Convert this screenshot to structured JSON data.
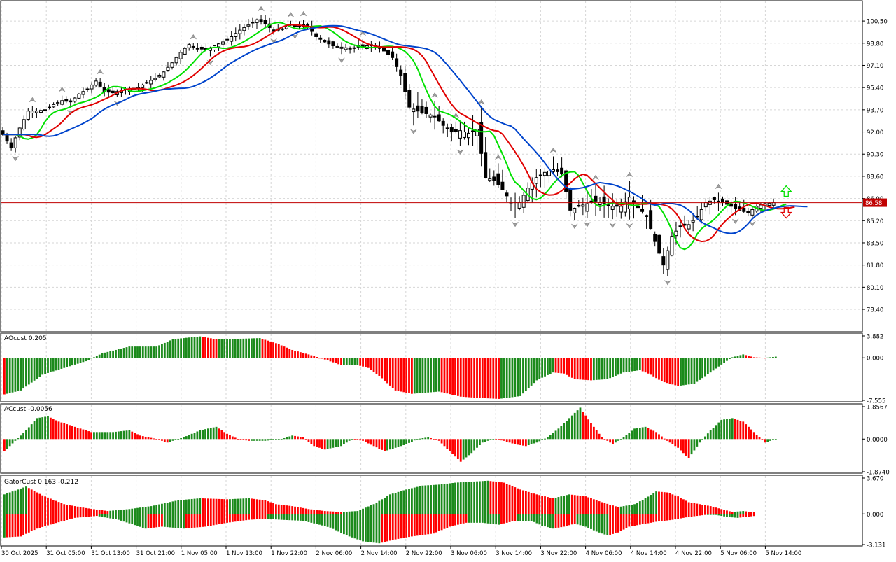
{
  "colors": {
    "bull": "#1b8a1b",
    "bear": "#ff0000",
    "ma_green": "#00e000",
    "ma_red": "#e00000",
    "ma_blue": "#0044cc",
    "price_line": "#c00000",
    "price_tag_bg": "#c00000",
    "grid": "#d6d6d6",
    "frame": "#000000"
  },
  "chart_data": [
    {
      "type": "line",
      "panel": "price",
      "subtype": "candlestick",
      "current_price_label": "86.58",
      "current_price": 86.58,
      "ylim": [
        76.9,
        101.9
      ],
      "y_ticks": [
        "100.50",
        "98.80",
        "97.10",
        "95.40",
        "93.70",
        "92.00",
        "90.30",
        "88.60",
        "86.90",
        "85.20",
        "83.50",
        "81.80",
        "80.10",
        "78.40"
      ],
      "x_ticks": [
        "30 Oct 2025",
        "31 Oct 05:00",
        "31 Oct 13:00",
        "31 Oct 21:00",
        "1 Nov 05:00",
        "1 Nov 13:00",
        "1 Nov 22:00",
        "2 Nov 06:00",
        "2 Nov 14:00",
        "2 Nov 22:00",
        "3 Nov 06:00",
        "3 Nov 14:00",
        "3 Nov 22:00",
        "4 Nov 06:00",
        "4 Nov 14:00",
        "4 Nov 22:00",
        "5 Nov 06:00",
        "5 Nov 14:00"
      ],
      "close_anchors": [
        [
          0,
          91.8
        ],
        [
          2,
          90.8
        ],
        [
          4,
          92.3
        ],
        [
          6,
          93.6
        ],
        [
          8,
          93.6
        ],
        [
          10,
          93.7
        ],
        [
          12,
          94.1
        ],
        [
          14,
          94.4
        ],
        [
          16,
          94.3
        ],
        [
          18,
          94.9
        ],
        [
          20,
          95.3
        ],
        [
          22,
          95.9
        ],
        [
          24,
          95.1
        ],
        [
          26,
          95.0
        ],
        [
          28,
          95.2
        ],
        [
          30,
          95.3
        ],
        [
          32,
          95.4
        ],
        [
          34,
          95.8
        ],
        [
          36,
          96.1
        ],
        [
          38,
          96.6
        ],
        [
          40,
          97.3
        ],
        [
          42,
          98.1
        ],
        [
          44,
          98.7
        ],
        [
          46,
          98.4
        ],
        [
          48,
          98.3
        ],
        [
          50,
          98.6
        ],
        [
          52,
          98.9
        ],
        [
          54,
          99.3
        ],
        [
          56,
          99.8
        ],
        [
          58,
          100.2
        ],
        [
          60,
          100.6
        ],
        [
          62,
          100.3
        ],
        [
          64,
          99.7
        ],
        [
          66,
          99.9
        ],
        [
          68,
          100.2
        ],
        [
          70,
          100.1
        ],
        [
          72,
          100.1
        ],
        [
          74,
          99.3
        ],
        [
          76,
          98.9
        ],
        [
          78,
          98.6
        ],
        [
          80,
          98.5
        ],
        [
          82,
          98.4
        ],
        [
          84,
          98.5
        ],
        [
          86,
          98.6
        ],
        [
          88,
          98.6
        ],
        [
          90,
          98.2
        ],
        [
          92,
          97.7
        ],
        [
          94,
          96.3
        ],
        [
          96,
          93.9
        ],
        [
          98,
          93.6
        ],
        [
          100,
          93.4
        ],
        [
          102,
          93.2
        ],
        [
          104,
          92.5
        ],
        [
          106,
          92.0
        ],
        [
          108,
          92.1
        ],
        [
          110,
          91.9
        ],
        [
          112,
          92.2
        ],
        [
          114,
          88.5
        ],
        [
          116,
          88.3
        ],
        [
          118,
          87.6
        ],
        [
          120,
          86.6
        ],
        [
          122,
          86.6
        ],
        [
          124,
          87.7
        ],
        [
          126,
          88.5
        ],
        [
          128,
          88.9
        ],
        [
          130,
          89.1
        ],
        [
          132,
          88.8
        ],
        [
          134,
          86.0
        ],
        [
          136,
          86.3
        ],
        [
          138,
          86.5
        ],
        [
          140,
          86.7
        ],
        [
          142,
          86.5
        ],
        [
          144,
          86.3
        ],
        [
          146,
          86.3
        ],
        [
          148,
          87.0
        ],
        [
          150,
          86.2
        ],
        [
          152,
          85.6
        ],
        [
          154,
          83.6
        ],
        [
          156,
          81.8
        ],
        [
          158,
          84.0
        ],
        [
          160,
          84.8
        ],
        [
          162,
          84.9
        ],
        [
          164,
          85.5
        ],
        [
          166,
          86.6
        ],
        [
          168,
          86.8
        ],
        [
          170,
          86.6
        ],
        [
          172,
          86.3
        ],
        [
          174,
          86.0
        ],
        [
          176,
          85.8
        ],
        [
          178,
          86.3
        ],
        [
          180,
          86.5
        ],
        [
          182,
          86.58
        ]
      ],
      "volatility_anchors": [
        [
          0,
          0.4
        ],
        [
          28,
          0.4
        ],
        [
          46,
          0.5
        ],
        [
          92,
          0.5
        ],
        [
          96,
          1.2
        ],
        [
          118,
          1.4
        ],
        [
          134,
          1.2
        ],
        [
          150,
          1.4
        ],
        [
          160,
          1.0
        ],
        [
          182,
          0.5
        ]
      ],
      "ma_periods": [
        5,
        8,
        13
      ],
      "ma_shifts": [
        3,
        5,
        8
      ],
      "series": [
        {
          "name": "",
          "color_key": "ma_green",
          "kind": "sma"
        },
        {
          "name": "",
          "color_key": "ma_red",
          "kind": "sma"
        },
        {
          "name": "",
          "color_key": "ma_blue",
          "kind": "sma"
        }
      ],
      "signal_arrows": [
        "up",
        "down"
      ],
      "grid": true
    },
    {
      "type": "bar",
      "panel": "ao",
      "label": "AOcust 0.205",
      "ylim": [
        -7.555,
        3.882
      ],
      "y_ticks": [
        "3.882",
        "0.000",
        "-7.555"
      ],
      "anchors": [
        [
          0,
          -6.5
        ],
        [
          6,
          -5.8
        ],
        [
          14,
          -3.0
        ],
        [
          24,
          -1.5
        ],
        [
          30,
          -0.6
        ],
        [
          36,
          0.8
        ],
        [
          46,
          2.0
        ],
        [
          56,
          2.0
        ],
        [
          62,
          3.3
        ],
        [
          72,
          3.8
        ],
        [
          78,
          3.3
        ],
        [
          88,
          3.4
        ],
        [
          94,
          3.5
        ],
        [
          100,
          2.6
        ],
        [
          106,
          1.4
        ],
        [
          112,
          0.6
        ],
        [
          118,
          -0.3
        ],
        [
          124,
          -1.3
        ],
        [
          130,
          -1.3
        ],
        [
          134,
          -1.8
        ],
        [
          138,
          -3.2
        ],
        [
          144,
          -5.8
        ],
        [
          150,
          -6.4
        ],
        [
          160,
          -6.0
        ],
        [
          168,
          -6.9
        ],
        [
          174,
          -7.1
        ],
        [
          182,
          -7.3
        ],
        [
          190,
          -6.8
        ],
        [
          196,
          -4.0
        ],
        [
          202,
          -2.6
        ],
        [
          206,
          -2.8
        ],
        [
          210,
          -3.8
        ],
        [
          216,
          -4.0
        ],
        [
          222,
          -3.8
        ],
        [
          228,
          -2.6
        ],
        [
          234,
          -2.2
        ],
        [
          238,
          -3.0
        ],
        [
          242,
          -4.2
        ],
        [
          248,
          -5.0
        ],
        [
          254,
          -4.6
        ],
        [
          260,
          -2.6
        ],
        [
          264,
          -1.2
        ],
        [
          268,
          0.1
        ],
        [
          272,
          0.6
        ],
        [
          276,
          0.1
        ],
        [
          280,
          0.0
        ],
        [
          284,
          0.205
        ]
      ]
    },
    {
      "type": "bar",
      "panel": "ac",
      "label": "ACcust -0.0056",
      "ylim": [
        -1.874,
        1.8567
      ],
      "y_ticks": [
        "1.8567",
        "0.0000",
        "-1.8740"
      ],
      "anchors": [
        [
          0,
          -0.7
        ],
        [
          4,
          -0.1
        ],
        [
          8,
          0.5
        ],
        [
          12,
          1.2
        ],
        [
          16,
          1.3
        ],
        [
          20,
          1.0
        ],
        [
          26,
          0.7
        ],
        [
          32,
          0.4
        ],
        [
          40,
          0.4
        ],
        [
          46,
          0.5
        ],
        [
          50,
          0.2
        ],
        [
          56,
          0.0
        ],
        [
          60,
          -0.2
        ],
        [
          66,
          0.1
        ],
        [
          72,
          0.5
        ],
        [
          78,
          0.7
        ],
        [
          82,
          0.3
        ],
        [
          86,
          0.0
        ],
        [
          90,
          -0.1
        ],
        [
          96,
          -0.1
        ],
        [
          102,
          0.0
        ],
        [
          106,
          0.2
        ],
        [
          110,
          0.1
        ],
        [
          114,
          -0.4
        ],
        [
          118,
          -0.6
        ],
        [
          124,
          -0.4
        ],
        [
          128,
          0.0
        ],
        [
          132,
          -0.1
        ],
        [
          136,
          -0.4
        ],
        [
          140,
          -0.7
        ],
        [
          144,
          -0.5
        ],
        [
          148,
          -0.3
        ],
        [
          152,
          0.0
        ],
        [
          156,
          0.1
        ],
        [
          160,
          -0.1
        ],
        [
          164,
          -0.7
        ],
        [
          168,
          -1.3
        ],
        [
          172,
          -0.8
        ],
        [
          176,
          -0.2
        ],
        [
          180,
          0.0
        ],
        [
          184,
          -0.1
        ],
        [
          188,
          -0.3
        ],
        [
          192,
          -0.4
        ],
        [
          196,
          -0.2
        ],
        [
          200,
          0.1
        ],
        [
          204,
          0.6
        ],
        [
          208,
          1.2
        ],
        [
          212,
          1.8
        ],
        [
          216,
          0.9
        ],
        [
          220,
          0.1
        ],
        [
          224,
          -0.3
        ],
        [
          228,
          0.1
        ],
        [
          232,
          0.6
        ],
        [
          236,
          0.7
        ],
        [
          240,
          0.4
        ],
        [
          244,
          -0.1
        ],
        [
          248,
          -0.5
        ],
        [
          252,
          -1.1
        ],
        [
          256,
          -0.2
        ],
        [
          260,
          0.5
        ],
        [
          264,
          1.1
        ],
        [
          268,
          1.2
        ],
        [
          272,
          1.0
        ],
        [
          276,
          0.4
        ],
        [
          280,
          -0.2
        ],
        [
          284,
          -0.0056
        ]
      ]
    },
    {
      "type": "bar",
      "panel": "gator",
      "label": "GatorCust 0.163 -0.212",
      "ylim": [
        -3.131,
        3.67
      ],
      "y_ticks": [
        "3.670",
        "0.000",
        "-3.131"
      ],
      "upper_anchors": [
        [
          0,
          2.0
        ],
        [
          8,
          2.8
        ],
        [
          14,
          1.9
        ],
        [
          22,
          1.0
        ],
        [
          30,
          0.6
        ],
        [
          38,
          0.3
        ],
        [
          46,
          0.5
        ],
        [
          54,
          0.8
        ],
        [
          64,
          1.4
        ],
        [
          72,
          1.6
        ],
        [
          82,
          1.5
        ],
        [
          90,
          1.6
        ],
        [
          96,
          1.4
        ],
        [
          100,
          1.0
        ],
        [
          106,
          0.8
        ],
        [
          112,
          0.5
        ],
        [
          118,
          0.3
        ],
        [
          124,
          0.2
        ],
        [
          130,
          0.3
        ],
        [
          136,
          1.0
        ],
        [
          142,
          2.0
        ],
        [
          148,
          2.5
        ],
        [
          154,
          2.9
        ],
        [
          160,
          3.0
        ],
        [
          166,
          3.2
        ],
        [
          172,
          3.3
        ],
        [
          178,
          3.4
        ],
        [
          184,
          3.2
        ],
        [
          190,
          2.5
        ],
        [
          196,
          2.0
        ],
        [
          202,
          1.6
        ],
        [
          208,
          2.0
        ],
        [
          214,
          1.8
        ],
        [
          220,
          1.2
        ],
        [
          226,
          0.7
        ],
        [
          232,
          1.0
        ],
        [
          236,
          1.6
        ],
        [
          240,
          2.3
        ],
        [
          244,
          2.2
        ],
        [
          248,
          1.8
        ],
        [
          252,
          1.2
        ],
        [
          256,
          1.0
        ],
        [
          260,
          0.8
        ],
        [
          264,
          0.5
        ],
        [
          268,
          0.2
        ],
        [
          272,
          0.3
        ],
        [
          276,
          0.163
        ]
      ],
      "lower_anchors": [
        [
          0,
          -2.4
        ],
        [
          6,
          -2.3
        ],
        [
          12,
          -1.5
        ],
        [
          18,
          -1.0
        ],
        [
          26,
          -0.4
        ],
        [
          34,
          -0.2
        ],
        [
          42,
          -0.6
        ],
        [
          52,
          -1.5
        ],
        [
          58,
          -1.3
        ],
        [
          66,
          -1.5
        ],
        [
          74,
          -1.3
        ],
        [
          82,
          -0.9
        ],
        [
          90,
          -0.6
        ],
        [
          96,
          -0.5
        ],
        [
          102,
          -0.6
        ],
        [
          110,
          -0.7
        ],
        [
          116,
          -1.1
        ],
        [
          120,
          -1.4
        ],
        [
          126,
          -2.2
        ],
        [
          132,
          -2.8
        ],
        [
          138,
          -3.0
        ],
        [
          144,
          -2.6
        ],
        [
          150,
          -2.3
        ],
        [
          158,
          -2.0
        ],
        [
          164,
          -1.3
        ],
        [
          170,
          -0.9
        ],
        [
          176,
          -0.9
        ],
        [
          182,
          -1.1
        ],
        [
          188,
          -0.7
        ],
        [
          194,
          -0.7
        ],
        [
          198,
          -1.2
        ],
        [
          202,
          -1.5
        ],
        [
          206,
          -1.3
        ],
        [
          210,
          -1.0
        ],
        [
          214,
          -1.3
        ],
        [
          218,
          -1.8
        ],
        [
          222,
          -2.2
        ],
        [
          226,
          -1.9
        ],
        [
          230,
          -1.3
        ],
        [
          236,
          -1.0
        ],
        [
          240,
          -0.8
        ],
        [
          246,
          -0.6
        ],
        [
          252,
          -0.3
        ],
        [
          258,
          -0.1
        ],
        [
          262,
          -0.1
        ],
        [
          266,
          -0.3
        ],
        [
          270,
          -0.4
        ],
        [
          276,
          -0.212
        ]
      ]
    }
  ]
}
